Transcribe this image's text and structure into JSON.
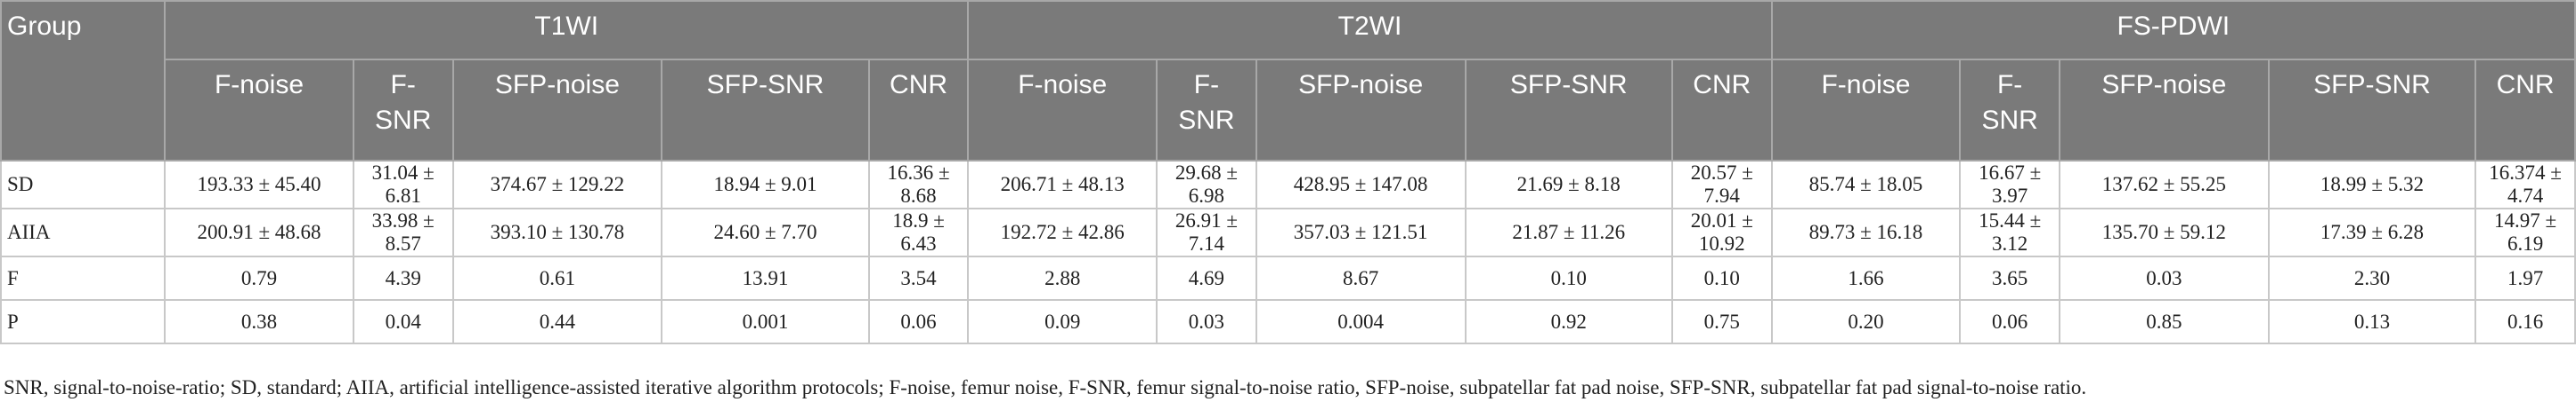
{
  "table": {
    "group_header": "Group",
    "section_headers": [
      "T1WI",
      "T2WI",
      "FS-PDWI"
    ],
    "column_headers": [
      "F-noise",
      "F-SNR",
      "SFP-noise",
      "SFP-SNR",
      "CNR",
      "F-noise",
      "F-SNR",
      "SFP-noise",
      "SFP-SNR",
      "CNR",
      "F-noise",
      "F-SNR",
      "SFP-noise",
      "SFP-SNR",
      "CNR"
    ],
    "rows": [
      {
        "label": "SD",
        "cells": [
          "193.33 ± 45.40",
          "31.04 ± 6.81",
          "374.67 ± 129.22",
          "18.94 ± 9.01",
          "16.36 ± 8.68",
          "206.71 ± 48.13",
          "29.68 ± 6.98",
          "428.95 ± 147.08",
          "21.69 ± 8.18",
          "20.57 ± 7.94",
          "85.74 ± 18.05",
          "16.67 ± 3.97",
          "137.62 ± 55.25",
          "18.99 ± 5.32",
          "16.374 ± 4.74"
        ]
      },
      {
        "label": "AIIA",
        "cells": [
          "200.91 ± 48.68",
          "33.98 ± 8.57",
          "393.10 ± 130.78",
          "24.60 ± 7.70",
          "18.9 ± 6.43",
          "192.72 ± 42.86",
          "26.91 ± 7.14",
          "357.03 ± 121.51",
          "21.87 ± 11.26",
          "20.01 ± 10.92",
          "89.73 ± 16.18",
          "15.44 ± 3.12",
          "135.70 ± 59.12",
          "17.39 ± 6.28",
          "14.97 ± 6.19"
        ]
      },
      {
        "label": "F",
        "cells": [
          "0.79",
          "4.39",
          "0.61",
          "13.91",
          "3.54",
          "2.88",
          "4.69",
          "8.67",
          "0.10",
          "0.10",
          "1.66",
          "3.65",
          "0.03",
          "2.30",
          "1.97"
        ]
      },
      {
        "label": "P",
        "cells": [
          "0.38",
          "0.04",
          "0.44",
          "0.001",
          "0.06",
          "0.09",
          "0.03",
          "0.004",
          "0.92",
          "0.75",
          "0.20",
          "0.06",
          "0.85",
          "0.13",
          "0.16"
        ]
      }
    ]
  },
  "footnote": "SNR, signal-to-noise-ratio; SD, standard; AIIA, artificial intelligence-assisted iterative algorithm protocols; F-noise, femur noise, F-SNR, femur signal-to-noise ratio, SFP-noise, subpatellar fat pad noise, SFP-SNR, subpatellar fat pad signal-to-noise ratio."
}
